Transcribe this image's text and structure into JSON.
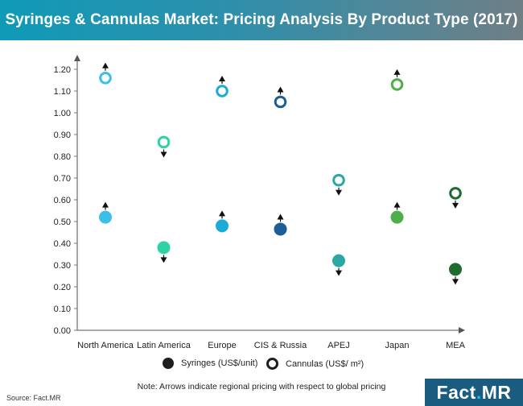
{
  "title": "Syringes & Cannulas Market: Pricing Analysis By Product Type (2017)",
  "chart_data": {
    "type": "scatter",
    "title": "Syringes & Cannulas Market: Pricing Analysis By Product Type (2017)",
    "xlabel": "",
    "ylabel": "",
    "ylim": [
      0,
      1.2
    ],
    "yticks": [
      "0.00",
      "0.10",
      "0.20",
      "0.30",
      "0.40",
      "0.50",
      "0.60",
      "0.70",
      "0.80",
      "0.90",
      "1.00",
      "1.10",
      "1.20"
    ],
    "grid": false,
    "categories": [
      "North America",
      "Latin America",
      "Europe",
      "CIS & Russia",
      "APEJ",
      "Japan",
      "MEA"
    ],
    "colors": [
      "#3bbfe8",
      "#2fd1a6",
      "#1cabd6",
      "#1b5f96",
      "#2aa9a4",
      "#4fae4a",
      "#1f6b2f"
    ],
    "series": [
      {
        "name": "Syringes (US$/unit)",
        "marker": "filled-circle",
        "values": [
          0.52,
          0.38,
          0.48,
          0.465,
          0.32,
          0.52,
          0.28
        ],
        "arrows": [
          "up",
          "down",
          "up",
          "up",
          "down",
          "up",
          "down"
        ]
      },
      {
        "name": "Cannulas (US$/ m²)",
        "marker": "open-circle",
        "values": [
          1.16,
          0.865,
          1.1,
          1.05,
          0.69,
          1.13,
          0.63
        ],
        "arrows": [
          "up",
          "down",
          "up",
          "up",
          "down",
          "up",
          "down"
        ]
      }
    ]
  },
  "legend": {
    "syringes": "Syringes (US$/unit)",
    "cannulas": "Cannulas (US$/ m²)"
  },
  "note": "Note: Arrows indicate regional pricing with respect to global pricing",
  "source": "Source: Fact.MR",
  "brand": {
    "main": "Fact",
    "dot": ".",
    "suffix": "MR"
  }
}
